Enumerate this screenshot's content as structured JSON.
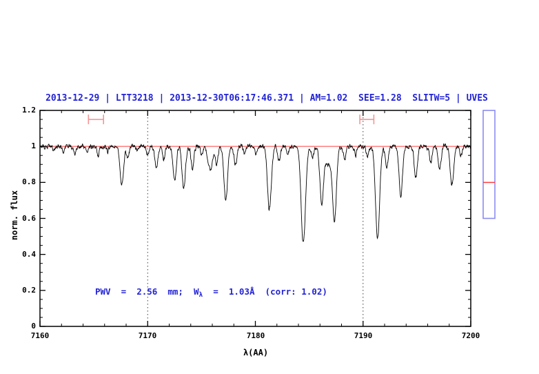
{
  "header": {
    "title": "2013-12-29 | LTT3218 | 2013-12-30T06:17:46.371 | AM=1.02  SEE=1.28  SLITW=5 | UVES"
  },
  "chart_data": {
    "type": "line",
    "title": "2013-12-29 | LTT3218 | 2013-12-30T06:17:46.371 | AM=1.02  SEE=1.28  SLITW=5 | UVES",
    "xlabel": "λ(AA)",
    "ylabel": "norm. flux",
    "xlim": [
      7160,
      7200
    ],
    "ylim": [
      0,
      1.2
    ],
    "x_major_ticks": [
      7160,
      7170,
      7180,
      7190,
      7200
    ],
    "x_tick_labels": [
      "7160",
      "7170",
      "7180",
      "7190",
      "7200"
    ],
    "x_minor_step": 2,
    "y_major_ticks": [
      0,
      0.2,
      0.4,
      0.6,
      0.8,
      1,
      1.2
    ],
    "y_tick_labels": [
      "0",
      "0.2",
      "0.4",
      "0.6",
      "0.8",
      "1",
      "1.2"
    ],
    "y_minor_step": 0.05,
    "grid": "off",
    "legend": "none",
    "continuum_level": 1.0,
    "noise_amplitude": 0.02,
    "dotted_guides_x": [
      7170,
      7190
    ],
    "absorption_lines": [
      {
        "wl": 7161.3,
        "depth": 0.02,
        "sigma": 0.1
      },
      {
        "wl": 7162.2,
        "depth": 0.03,
        "sigma": 0.1
      },
      {
        "wl": 7163.2,
        "depth": 0.04,
        "sigma": 0.12
      },
      {
        "wl": 7164.4,
        "depth": 0.03,
        "sigma": 0.1
      },
      {
        "wl": 7165.4,
        "depth": 0.05,
        "sigma": 0.12
      },
      {
        "wl": 7166.3,
        "depth": 0.03,
        "sigma": 0.1
      },
      {
        "wl": 7167.6,
        "depth": 0.215,
        "sigma": 0.16
      },
      {
        "wl": 7168.15,
        "depth": 0.06,
        "sigma": 0.13
      },
      {
        "wl": 7169.0,
        "depth": 0.03,
        "sigma": 0.1
      },
      {
        "wl": 7170.0,
        "depth": 0.045,
        "sigma": 0.12
      },
      {
        "wl": 7170.8,
        "depth": 0.115,
        "sigma": 0.14
      },
      {
        "wl": 7171.5,
        "depth": 0.07,
        "sigma": 0.12
      },
      {
        "wl": 7172.5,
        "depth": 0.195,
        "sigma": 0.15
      },
      {
        "wl": 7173.35,
        "depth": 0.235,
        "sigma": 0.16
      },
      {
        "wl": 7174.15,
        "depth": 0.12,
        "sigma": 0.13
      },
      {
        "wl": 7175.0,
        "depth": 0.04,
        "sigma": 0.12
      },
      {
        "wl": 7175.8,
        "depth": 0.13,
        "sigma": 0.2
      },
      {
        "wl": 7176.4,
        "depth": 0.1,
        "sigma": 0.14
      },
      {
        "wl": 7177.25,
        "depth": 0.3,
        "sigma": 0.17
      },
      {
        "wl": 7178.15,
        "depth": 0.1,
        "sigma": 0.14
      },
      {
        "wl": 7179.0,
        "depth": 0.035,
        "sigma": 0.11
      },
      {
        "wl": 7180.1,
        "depth": 0.04,
        "sigma": 0.11
      },
      {
        "wl": 7181.3,
        "depth": 0.355,
        "sigma": 0.18
      },
      {
        "wl": 7182.2,
        "depth": 0.08,
        "sigma": 0.12
      },
      {
        "wl": 7183.0,
        "depth": 0.04,
        "sigma": 0.11
      },
      {
        "wl": 7184.45,
        "depth": 0.545,
        "sigma": 0.2
      },
      {
        "wl": 7185.3,
        "depth": 0.06,
        "sigma": 0.12
      },
      {
        "wl": 7186.15,
        "depth": 0.28,
        "sigma": 0.16
      },
      {
        "wl": 7186.8,
        "depth": 0.1,
        "sigma": 0.45
      },
      {
        "wl": 7187.35,
        "depth": 0.37,
        "sigma": 0.17
      },
      {
        "wl": 7188.3,
        "depth": 0.07,
        "sigma": 0.12
      },
      {
        "wl": 7189.3,
        "depth": 0.05,
        "sigma": 0.11
      },
      {
        "wl": 7190.4,
        "depth": 0.06,
        "sigma": 0.12
      },
      {
        "wl": 7191.35,
        "depth": 0.51,
        "sigma": 0.19
      },
      {
        "wl": 7192.2,
        "depth": 0.12,
        "sigma": 0.13
      },
      {
        "wl": 7193.5,
        "depth": 0.27,
        "sigma": 0.16
      },
      {
        "wl": 7194.9,
        "depth": 0.175,
        "sigma": 0.15
      },
      {
        "wl": 7196.3,
        "depth": 0.09,
        "sigma": 0.13
      },
      {
        "wl": 7197.1,
        "depth": 0.13,
        "sigma": 0.14
      },
      {
        "wl": 7198.25,
        "depth": 0.215,
        "sigma": 0.16
      },
      {
        "wl": 7199.1,
        "depth": 0.05,
        "sigma": 0.11
      }
    ],
    "interval_markers": [
      {
        "x1": 7164.5,
        "x2": 7165.9,
        "y": 1.15
      },
      {
        "x1": 7189.7,
        "x2": 7191.0,
        "y": 1.15
      }
    ],
    "side_gauge": {
      "flux_top": 1.2,
      "flux_bottom": 0.6,
      "marker_flux": 0.8
    },
    "annotation": {
      "pre": "PWV  =  2.56  mm;  W",
      "sub": "λ",
      "post": "  =  1.03Å  (corr: 1.02)"
    },
    "colors": {
      "title": "#2323d6",
      "annotation": "#2323d6",
      "spectrum": "#000000",
      "continuum": "#ff3b3b",
      "guide": "#3a3a3a",
      "interval_marker": "#f59595",
      "gauge_border": "#8a8af0",
      "gauge_marker": "#ff3b3b",
      "axis": "#000000"
    }
  }
}
